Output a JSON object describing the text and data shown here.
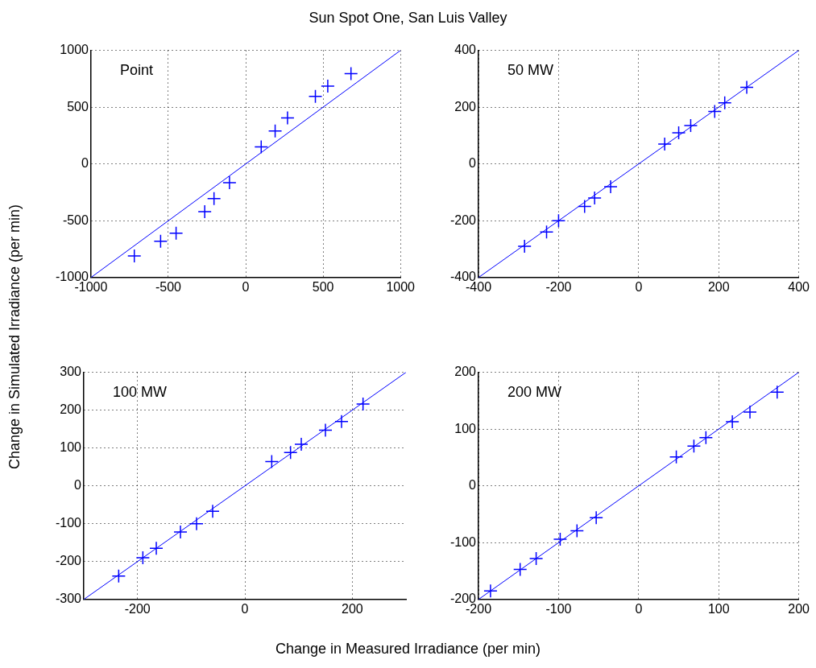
{
  "chart_data": [
    {
      "type": "scatter",
      "title": "Sun Spot One, San Luis Valley",
      "ylabel": "Change in Simulated Irradiance (per min)",
      "annotations": [
        "Point"
      ],
      "xlim": [
        -1000,
        1000
      ],
      "ylim": [
        -1000,
        1000
      ],
      "xticks": [
        -1000,
        -500,
        0,
        500,
        1000
      ],
      "yticks": [
        -1000,
        -500,
        0,
        500,
        1000
      ],
      "grid": true,
      "marker": "cross",
      "series": [
        {
          "type": "scatter",
          "color": "#0000ff",
          "x": [
            -720,
            -550,
            -450,
            -265,
            -205,
            -105,
            100,
            190,
            270,
            450,
            530,
            680
          ],
          "values": [
            -810,
            -680,
            -610,
            -420,
            -305,
            -165,
            150,
            290,
            405,
            595,
            685,
            795
          ]
        },
        {
          "type": "line",
          "color": "#0000ff",
          "marker": "none",
          "x": [
            -1000,
            1000
          ],
          "values": [
            -1000,
            1000
          ]
        }
      ]
    },
    {
      "type": "scatter",
      "annotations": [
        "50 MW"
      ],
      "xlim": [
        -400,
        400
      ],
      "ylim": [
        -400,
        400
      ],
      "xticks": [
        -400,
        -200,
        0,
        200,
        400
      ],
      "yticks": [
        -400,
        -200,
        0,
        200,
        400
      ],
      "grid": true,
      "marker": "cross",
      "series": [
        {
          "type": "scatter",
          "color": "#0000ff",
          "x": [
            -285,
            -230,
            -200,
            -135,
            -110,
            -70,
            65,
            100,
            130,
            190,
            215,
            270
          ],
          "values": [
            -290,
            -240,
            -200,
            -150,
            -120,
            -80,
            70,
            110,
            135,
            185,
            215,
            270
          ]
        },
        {
          "type": "line",
          "color": "#0000ff",
          "marker": "none",
          "x": [
            -400,
            400
          ],
          "values": [
            -400,
            400
          ]
        }
      ]
    },
    {
      "type": "scatter",
      "xlabel": "Change in Measured Irradiance (per min)",
      "annotations": [
        "100 MW"
      ],
      "xlim": [
        -300,
        300
      ],
      "ylim": [
        -300,
        300
      ],
      "xticks": [
        -200,
        0,
        200
      ],
      "yticks": [
        -300,
        -200,
        -100,
        0,
        100,
        200,
        300
      ],
      "grid": true,
      "marker": "cross",
      "series": [
        {
          "type": "scatter",
          "color": "#0000ff",
          "x": [
            -235,
            -190,
            -165,
            -120,
            -90,
            -60,
            50,
            85,
            105,
            150,
            180,
            220
          ],
          "values": [
            -238,
            -190,
            -165,
            -122,
            -100,
            -67,
            64,
            88,
            110,
            147,
            170,
            216
          ]
        },
        {
          "type": "line",
          "color": "#0000ff",
          "marker": "none",
          "x": [
            -300,
            300
          ],
          "values": [
            -300,
            300
          ]
        }
      ]
    },
    {
      "type": "scatter",
      "annotations": [
        "200 MW"
      ],
      "xlim": [
        -200,
        200
      ],
      "ylim": [
        -200,
        200
      ],
      "xticks": [
        -200,
        -100,
        0,
        100,
        200
      ],
      "yticks": [
        -200,
        -100,
        0,
        100,
        200
      ],
      "grid": true,
      "marker": "cross",
      "series": [
        {
          "type": "scatter",
          "color": "#0000ff",
          "x": [
            -185,
            -148,
            -128,
            -98,
            -77,
            -53,
            47,
            69,
            84,
            117,
            139,
            173
          ],
          "values": [
            -185,
            -147,
            -128,
            -94,
            -79,
            -56,
            51,
            70,
            85,
            113,
            130,
            165
          ]
        },
        {
          "type": "line",
          "color": "#0000ff",
          "marker": "none",
          "x": [
            -200,
            200
          ],
          "values": [
            -200,
            200
          ]
        }
      ]
    }
  ]
}
